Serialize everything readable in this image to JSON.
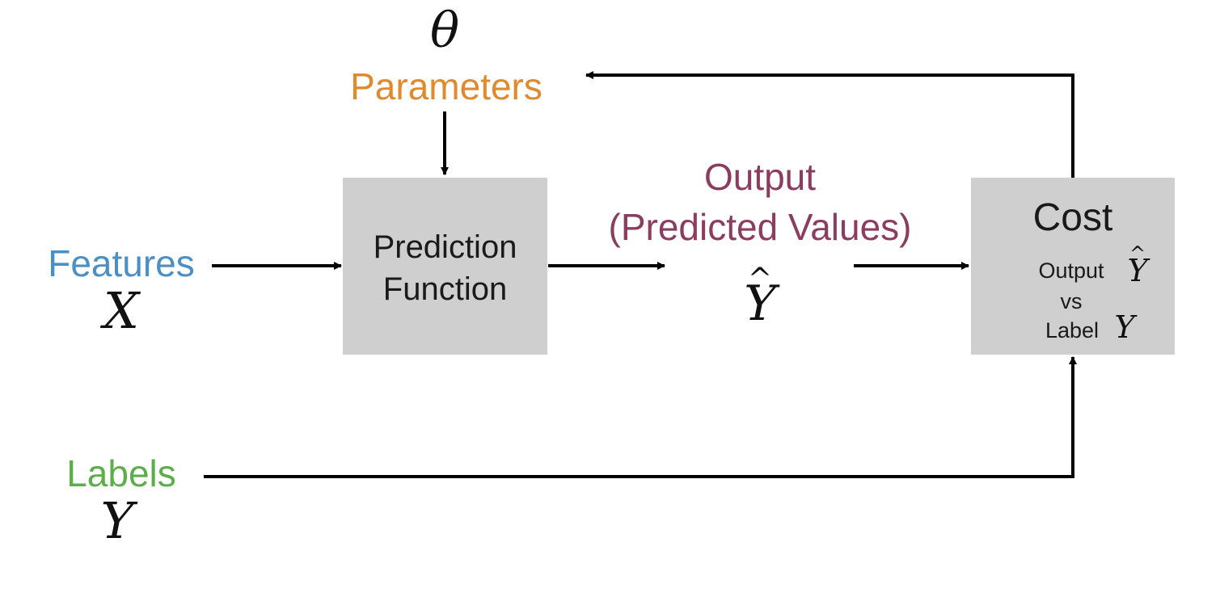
{
  "colors": {
    "features": "#4a90c4",
    "parameters": "#e08a2e",
    "output": "#8a3d5e",
    "labels": "#5cae4a",
    "box_fill": "#cfcfcf",
    "arrow": "#000000"
  },
  "parameters": {
    "symbol": "θ",
    "label": "Parameters"
  },
  "features": {
    "label": "Features",
    "symbol": "X"
  },
  "labels": {
    "label": "Labels",
    "symbol": "Y"
  },
  "prediction_box": {
    "line1": "Prediction",
    "line2": "Function"
  },
  "output": {
    "line1": "Output",
    "line2": "(Predicted Values)",
    "symbol": "Y",
    "hat": "^"
  },
  "cost_box": {
    "title": "Cost",
    "output_text": "Output",
    "output_symbol": "Y",
    "output_hat": "^",
    "vs_text": "vs",
    "label_text": "Label",
    "label_symbol": "Y"
  }
}
